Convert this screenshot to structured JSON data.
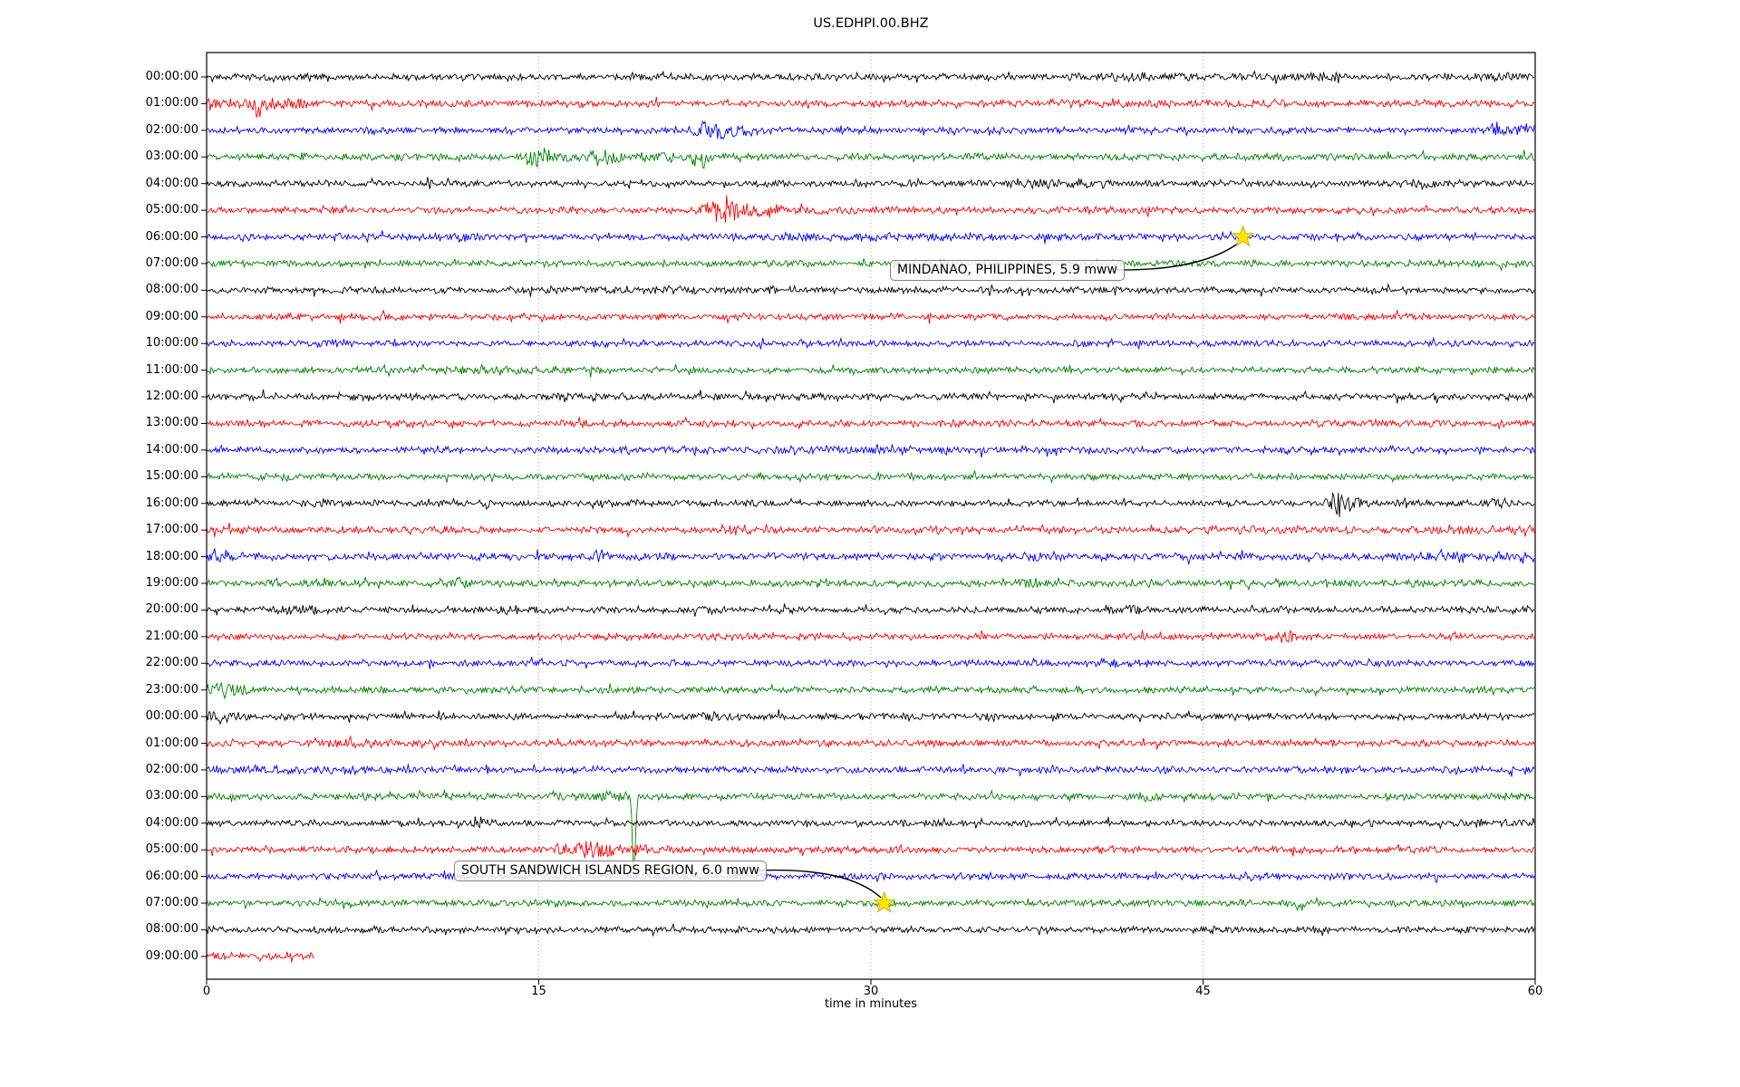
{
  "title": "US.EDHPI.00.BHZ",
  "xlabel": "time in minutes",
  "chart_data": {
    "type": "line",
    "subtype": "helicorder-dayplot",
    "station": "US.EDHPI.00.BHZ",
    "title": "US.EDHPI.00.BHZ",
    "xlabel": "time in minutes",
    "x_range_minutes": [
      0,
      60
    ],
    "x_ticks": [
      0,
      15,
      30,
      45,
      60
    ],
    "grid": "vertical dotted lines at 15, 30, 45 minutes",
    "legend": "none",
    "minutes_per_row": 60,
    "trace_colors": {
      "black": "#000000",
      "red": "#ff0000",
      "blue": "#0000ff",
      "green": "#008000"
    },
    "marker_colors": {
      "star_fill": "#ffe500",
      "star_edge": "#c9b400"
    },
    "gridline_color": "#aaaaaa",
    "rows": [
      {
        "label": "00:00:00",
        "color": "black",
        "base_amp": 3.0,
        "bursts": [
          [
            42,
            2.5,
            1.5
          ],
          [
            50.5,
            3,
            0.8
          ],
          [
            58.5,
            2,
            1
          ]
        ]
      },
      {
        "label": "01:00:00",
        "color": "red",
        "base_amp": 3.2,
        "bursts": [
          [
            1.5,
            5,
            1.5
          ],
          [
            2.25,
            9,
            0.15,
            6
          ],
          [
            3.5,
            3,
            0.8
          ]
        ]
      },
      {
        "label": "02:00:00",
        "color": "blue",
        "base_amp": 3.0,
        "bursts": [
          [
            22.6,
            11,
            0.35
          ],
          [
            23.2,
            7,
            0.5
          ],
          [
            24,
            5,
            0.4
          ],
          [
            58.3,
            6,
            0.3
          ],
          [
            59.5,
            6,
            0.35
          ]
        ]
      },
      {
        "label": "03:00:00",
        "color": "green",
        "base_amp": 3.2,
        "bursts": [
          [
            15.0,
            10,
            0.5
          ],
          [
            17.6,
            6,
            0.6
          ],
          [
            22.3,
            8,
            0.25,
            5
          ],
          [
            19,
            3,
            2
          ]
        ]
      },
      {
        "label": "04:00:00",
        "color": "black",
        "base_amp": 2.8,
        "bursts": [
          [
            10.1,
            8,
            0.12
          ],
          [
            38,
            2.5,
            3
          ],
          [
            55,
            2,
            2
          ]
        ]
      },
      {
        "label": "05:00:00",
        "color": "red",
        "base_amp": 3.0,
        "bursts": [
          [
            22.7,
            14,
            0.25
          ],
          [
            23.3,
            16,
            0.3
          ],
          [
            24.2,
            8,
            0.6
          ],
          [
            26,
            3.5,
            1.5
          ]
        ]
      },
      {
        "label": "06:00:00",
        "color": "blue",
        "base_amp": 3.0,
        "bursts": [
          [
            11.7,
            5,
            0.3
          ],
          [
            30,
            1.5,
            5
          ]
        ]
      },
      {
        "label": "07:00:00",
        "color": "green",
        "base_amp": 2.9,
        "bursts": []
      },
      {
        "label": "08:00:00",
        "color": "black",
        "base_amp": 2.9,
        "bursts": [
          [
            20,
            1.5,
            4
          ]
        ]
      },
      {
        "label": "09:00:00",
        "color": "red",
        "base_amp": 3.0,
        "bursts": []
      },
      {
        "label": "10:00:00",
        "color": "blue",
        "base_amp": 2.8,
        "bursts": [
          [
            5.7,
            3,
            0.3
          ]
        ]
      },
      {
        "label": "11:00:00",
        "color": "green",
        "base_amp": 2.9,
        "bursts": [
          [
            14,
            2,
            2
          ]
        ]
      },
      {
        "label": "12:00:00",
        "color": "black",
        "base_amp": 3.0,
        "bursts": []
      },
      {
        "label": "13:00:00",
        "color": "red",
        "base_amp": 3.0,
        "bursts": []
      },
      {
        "label": "14:00:00",
        "color": "blue",
        "base_amp": 2.9,
        "bursts": [
          [
            30,
            1.5,
            8
          ]
        ]
      },
      {
        "label": "15:00:00",
        "color": "green",
        "base_amp": 2.9,
        "bursts": []
      },
      {
        "label": "16:00:00",
        "color": "black",
        "base_amp": 2.9,
        "bursts": [
          [
            5.2,
            5,
            0.3
          ],
          [
            12.6,
            4,
            0.25
          ],
          [
            51.1,
            20,
            0.22
          ],
          [
            51.5,
            8,
            0.5
          ],
          [
            54.1,
            7,
            0.15
          ],
          [
            58.1,
            5,
            0.2
          ]
        ]
      },
      {
        "label": "17:00:00",
        "color": "red",
        "base_amp": 3.2,
        "bursts": [
          [
            23.8,
            5,
            0.4
          ],
          [
            48,
            2,
            1.5
          ],
          [
            57.5,
            3,
            2
          ]
        ]
      },
      {
        "label": "18:00:00",
        "color": "blue",
        "base_amp": 3.2,
        "bursts": [
          [
            0.5,
            6,
            0.6
          ],
          [
            17.7,
            4,
            0.4
          ],
          [
            37.8,
            4,
            0.5
          ],
          [
            57,
            3,
            2
          ]
        ]
      },
      {
        "label": "19:00:00",
        "color": "green",
        "base_amp": 3.1,
        "bursts": [
          [
            5.2,
            5,
            0.3
          ],
          [
            11.5,
            5,
            0.25
          ],
          [
            36.9,
            4,
            0.4
          ],
          [
            54.7,
            4,
            0.3
          ]
        ]
      },
      {
        "label": "20:00:00",
        "color": "black",
        "base_amp": 3.0,
        "bursts": [
          [
            4.5,
            5,
            0.8
          ],
          [
            13.7,
            5,
            0.3
          ],
          [
            22.8,
            4,
            0.3
          ],
          [
            41.9,
            3.5,
            0.4
          ]
        ]
      },
      {
        "label": "21:00:00",
        "color": "red",
        "base_amp": 3.0,
        "bursts": [
          [
            48.2,
            8,
            0.35
          ],
          [
            48.8,
            4,
            0.4
          ]
        ]
      },
      {
        "label": "22:00:00",
        "color": "blue",
        "base_amp": 2.9,
        "bursts": [
          [
            40.7,
            5,
            0.4
          ]
        ]
      },
      {
        "label": "23:00:00",
        "color": "green",
        "base_amp": 3.0,
        "bursts": [
          [
            0.8,
            6,
            0.8
          ]
        ]
      },
      {
        "label": "00:00:00",
        "color": "black",
        "base_amp": 3.0,
        "bursts": [
          [
            0.6,
            6,
            0.7
          ],
          [
            22.8,
            4,
            0.3
          ],
          [
            29.8,
            3,
            0.3
          ]
        ]
      },
      {
        "label": "01:00:00",
        "color": "red",
        "base_amp": 3.0,
        "bursts": [
          [
            6.5,
            2.5,
            1
          ]
        ]
      },
      {
        "label": "02:00:00",
        "color": "blue",
        "base_amp": 3.0,
        "bursts": [
          [
            5,
            2.5,
            3
          ]
        ]
      },
      {
        "label": "03:00:00",
        "color": "green",
        "base_amp": 3.0,
        "bursts": [
          [
            15.7,
            5,
            0.3
          ],
          [
            18,
            5,
            0.6
          ],
          [
            19.3,
            9,
            0.07,
            85
          ],
          [
            42.4,
            4,
            0.5
          ],
          [
            49.4,
            3,
            0.3
          ]
        ]
      },
      {
        "label": "04:00:00",
        "color": "black",
        "base_amp": 2.8,
        "bursts": [
          [
            12.2,
            9,
            0.1
          ],
          [
            12.4,
            4,
            0.3
          ],
          [
            57.5,
            2,
            1
          ]
        ]
      },
      {
        "label": "05:00:00",
        "color": "red",
        "base_amp": 3.0,
        "bursts": [
          [
            16,
            10,
            0.2
          ],
          [
            17,
            13,
            0.25
          ],
          [
            17.8,
            9,
            0.3
          ],
          [
            19,
            4,
            1
          ]
        ]
      },
      {
        "label": "06:00:00",
        "color": "blue",
        "base_amp": 2.9,
        "bursts": []
      },
      {
        "label": "07:00:00",
        "color": "green",
        "base_amp": 2.9,
        "bursts": [
          [
            49.4,
            5,
            0.15,
            4
          ]
        ]
      },
      {
        "label": "08:00:00",
        "color": "black",
        "base_amp": 2.9,
        "bursts": []
      },
      {
        "label": "09:00:00",
        "color": "red",
        "base_amp": 3.4,
        "bursts": [],
        "end_minute": 4.9
      }
    ],
    "events": [
      {
        "text": "MINDANAO, PHILIPPINES, 5.9 mww",
        "magnitude": "5.9 mww",
        "row_index": 6,
        "row_label": "06:00:00",
        "minute": 46.8,
        "marker": "star"
      },
      {
        "text": "SOUTH SANDWICH ISLANDS REGION, 6.0 mww",
        "magnitude": "6.0 mww",
        "row_index": 31,
        "row_label": "07:00:00",
        "minute": 30.6,
        "marker": "star"
      }
    ]
  }
}
